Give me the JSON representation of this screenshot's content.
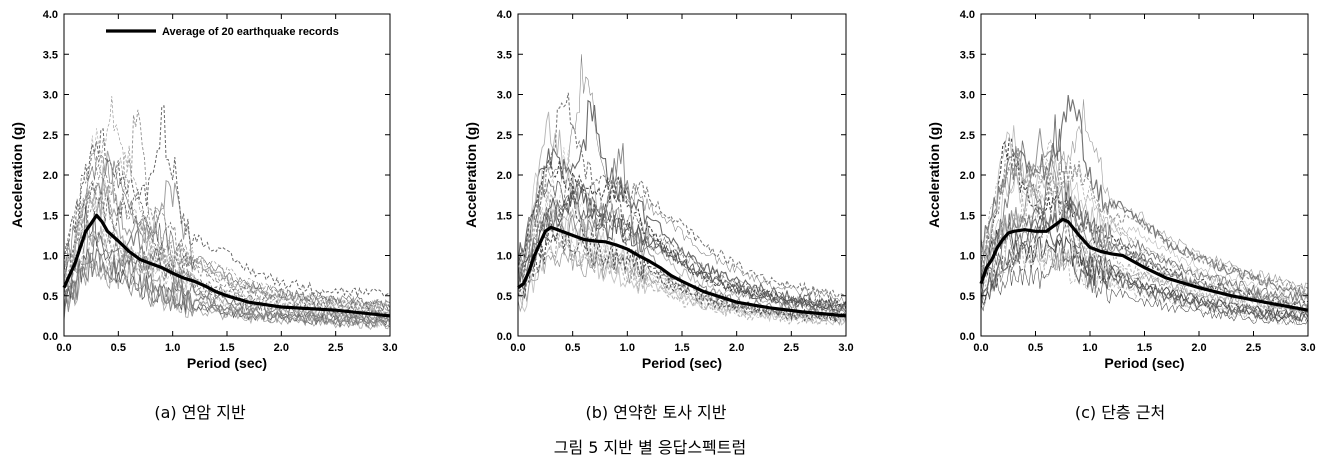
{
  "figure_caption": "그림 5 지반 별 응답스펙트럼",
  "colors": {
    "average": "#000000",
    "records": "#1a1a1a",
    "axis": "#000000"
  },
  "chart_data": [
    {
      "type": "line",
      "caption": "(a) 연암 지반",
      "xlabel": "Period (sec)",
      "ylabel": "Acceleration (g)",
      "xlim": [
        0,
        3.0
      ],
      "ylim": [
        0,
        4.0
      ],
      "xticks": [
        "0.0",
        "0.5",
        "1.0",
        "1.5",
        "2.0",
        "2.5",
        "3.0"
      ],
      "yticks": [
        "0.0",
        "0.5",
        "1.0",
        "1.5",
        "2.0",
        "2.5",
        "3.0",
        "3.5",
        "4.0"
      ],
      "legend": "Average of 20 earthquake records",
      "legend_position": "top-right",
      "series": [
        {
          "name": "Average of 20 earthquake records",
          "x": [
            0,
            0.05,
            0.1,
            0.15,
            0.2,
            0.25,
            0.3,
            0.35,
            0.4,
            0.5,
            0.6,
            0.7,
            0.8,
            0.9,
            1.0,
            1.1,
            1.2,
            1.3,
            1.4,
            1.5,
            1.7,
            2.0,
            2.5,
            3.0
          ],
          "y": [
            0.6,
            0.75,
            0.9,
            1.1,
            1.3,
            1.4,
            1.5,
            1.42,
            1.3,
            1.18,
            1.05,
            0.95,
            0.9,
            0.85,
            0.78,
            0.72,
            0.68,
            0.62,
            0.55,
            0.5,
            0.42,
            0.36,
            0.32,
            0.25
          ]
        }
      ]
    },
    {
      "type": "line",
      "caption": "(b) 연약한 토사 지반",
      "xlabel": "Period (sec)",
      "ylabel": "Acceleration (g)",
      "xlim": [
        0,
        3.0
      ],
      "ylim": [
        0,
        4.0
      ],
      "xticks": [
        "0.0",
        "0.5",
        "1.0",
        "1.5",
        "2.0",
        "2.5",
        "3.0"
      ],
      "yticks": [
        "0.0",
        "0.5",
        "1.0",
        "1.5",
        "2.0",
        "2.5",
        "3.0",
        "3.5",
        "4.0"
      ],
      "series": [
        {
          "name": "Average of 20 earthquake records",
          "x": [
            0,
            0.05,
            0.1,
            0.15,
            0.2,
            0.25,
            0.3,
            0.4,
            0.5,
            0.6,
            0.7,
            0.8,
            0.9,
            1.0,
            1.1,
            1.2,
            1.3,
            1.4,
            1.5,
            1.7,
            2.0,
            2.3,
            2.6,
            3.0
          ],
          "y": [
            0.6,
            0.65,
            0.8,
            1.0,
            1.15,
            1.3,
            1.35,
            1.3,
            1.25,
            1.2,
            1.18,
            1.17,
            1.13,
            1.08,
            1.0,
            0.93,
            0.85,
            0.75,
            0.68,
            0.55,
            0.42,
            0.35,
            0.3,
            0.25
          ]
        }
      ]
    },
    {
      "type": "line",
      "caption": "(c) 단층 근처",
      "xlabel": "Period (sec)",
      "ylabel": "Acceleration (g)",
      "xlim": [
        0,
        3.0
      ],
      "ylim": [
        0,
        4.0
      ],
      "xticks": [
        "0.0",
        "0.5",
        "1.0",
        "1.5",
        "2.0",
        "2.5",
        "3.0"
      ],
      "yticks": [
        "0.0",
        "0.5",
        "1.0",
        "1.5",
        "2.0",
        "2.5",
        "3.0",
        "3.5",
        "4.0"
      ],
      "series": [
        {
          "name": "Average of 20 earthquake records",
          "x": [
            0,
            0.05,
            0.1,
            0.15,
            0.2,
            0.25,
            0.3,
            0.4,
            0.5,
            0.6,
            0.7,
            0.75,
            0.8,
            0.9,
            1.0,
            1.1,
            1.2,
            1.3,
            1.5,
            1.7,
            2.0,
            2.3,
            2.6,
            3.0
          ],
          "y": [
            0.65,
            0.85,
            0.95,
            1.1,
            1.2,
            1.28,
            1.3,
            1.32,
            1.3,
            1.3,
            1.4,
            1.45,
            1.42,
            1.25,
            1.1,
            1.05,
            1.02,
            1.0,
            0.85,
            0.72,
            0.6,
            0.5,
            0.42,
            0.32
          ]
        }
      ]
    }
  ]
}
